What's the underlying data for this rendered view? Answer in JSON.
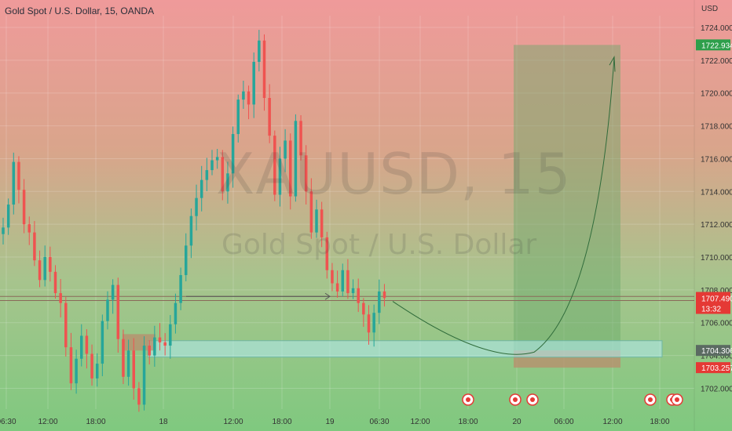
{
  "header": {
    "title": "Gold Spot / U.S. Dollar, 15, OANDA"
  },
  "watermark": {
    "symbol": "XAUUSD, 15",
    "name": "Gold Spot / U.S. Dollar"
  },
  "price_axis": {
    "currency": "USD"
  },
  "colors": {
    "bullish": "#26a69a",
    "bearish": "#ef5350",
    "profit_zone": "#6aa86a",
    "stop_zone": "#b98c6c",
    "support_zone": "#b2ebf2",
    "current_price_badge": "#e53935",
    "target_badge": "#2e9f4b"
  },
  "chart_data": {
    "type": "candlestick",
    "title": "Gold Spot / U.S. Dollar, 15, OANDA",
    "ylabel": "USD",
    "ylim": [
      1700.5,
      1725.5
    ],
    "y_ticks": [
      1702.0,
      1704.0,
      1706.0,
      1708.0,
      1710.0,
      1712.0,
      1714.0,
      1716.0,
      1718.0,
      1720.0,
      1722.0,
      1724.0
    ],
    "x_ticks": [
      "06:30",
      "12:00",
      "18:00",
      "18",
      "12:00",
      "18:00",
      "19",
      "06:30",
      "12:00",
      "18:00",
      "20",
      "06:00",
      "12:00",
      "18:00"
    ],
    "grid": true,
    "series_close_path": [
      1711.8,
      1713.2,
      1715.8,
      1714.1,
      1712.0,
      1711.5,
      1709.8,
      1708.6,
      1710.0,
      1709.1,
      1707.8,
      1707.2,
      1704.5,
      1702.3,
      1703.8,
      1705.2,
      1704.1,
      1702.6,
      1703.5,
      1706.1,
      1707.4,
      1708.3,
      1705.0,
      1702.7,
      1704.3,
      1702.0,
      1701.0,
      1704.6,
      1704.0,
      1705.1,
      1704.8,
      1704.6,
      1705.9,
      1707.2,
      1708.9,
      1710.7,
      1712.5,
      1713.6,
      1714.7,
      1715.3,
      1715.9,
      1716.1,
      1714.0,
      1715.1,
      1717.5,
      1719.6,
      1720.1,
      1719.3,
      1721.9,
      1723.2,
      1719.7,
      1717.4,
      1713.8,
      1716.0,
      1717.1,
      1713.7,
      1718.3,
      1716.2,
      1714.0,
      1711.5,
      1712.9,
      1711.2,
      1709.2,
      1708.4,
      1707.9,
      1709.2,
      1707.8,
      1708.1,
      1707.2,
      1706.5,
      1705.4,
      1706.6,
      1707.9,
      1707.5
    ],
    "current_price": "1707.490",
    "countdown": "13:32",
    "horizontal_level": 1707.6,
    "support_zone": [
      1703.9,
      1704.9
    ],
    "accumulation_box": [
      1704.3,
      1705.3
    ],
    "long_position": {
      "entry": "1704.306",
      "stop": "1703.257",
      "target": "1722.934"
    }
  }
}
